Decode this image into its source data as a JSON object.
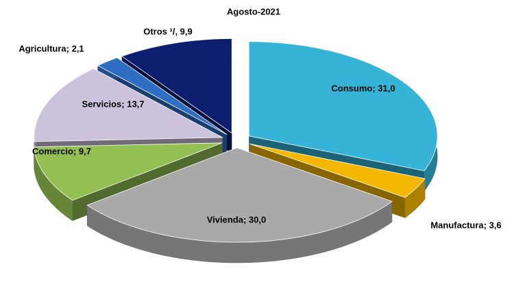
{
  "chart_data": {
    "type": "pie3d",
    "title": "Agosto-2021",
    "values": [
      31.0,
      3.6,
      30.0,
      9.7,
      13.7,
      2.1,
      9.9
    ],
    "value_labels": [
      "Consumo; 31,0",
      "Manufactura; 3,6",
      "Vivienda; 30,0",
      "Comercio; 9,7",
      "Servicios; 13,7",
      "Agricultura; 2,1",
      "Otros ¹/, 9,9"
    ],
    "colors": [
      "#35b4d8",
      "#f5b800",
      "#a9a9a9",
      "#93c052",
      "#cdc2dc",
      "#2e6fc4",
      "#0e1e6e"
    ]
  }
}
